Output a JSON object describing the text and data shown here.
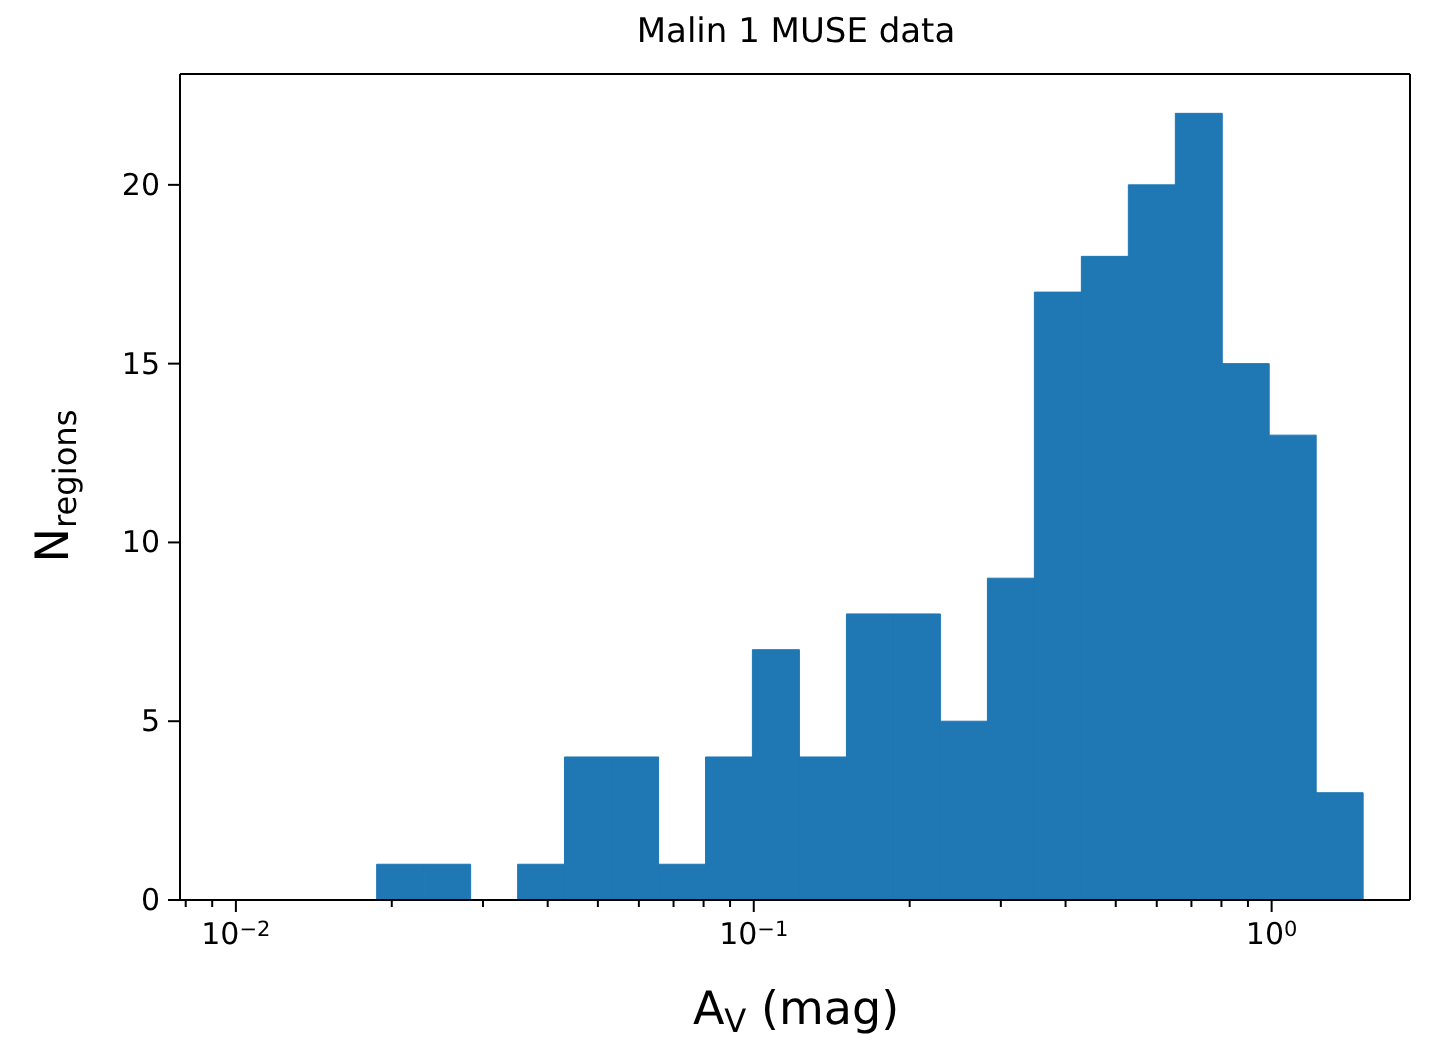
{
  "chart_data": {
    "type": "histogram",
    "title": "Malin 1 MUSE data",
    "xlabel": "A$_{V}$ (mag)",
    "ylabel": "N$_{regions}$",
    "bins": [
      0.0187,
      0.0231,
      0.0284,
      0.035,
      0.0431,
      0.0531,
      0.0655,
      0.0807,
      0.0994,
      0.1225,
      0.151,
      0.1861,
      0.2293,
      0.2826,
      0.3482,
      0.4291,
      0.5288,
      0.6517,
      0.8028,
      0.9892,
      1.219,
      1.502
    ],
    "values": [
      1,
      1,
      0,
      1,
      4,
      4,
      1,
      4,
      7,
      4,
      8,
      8,
      5,
      9,
      17,
      18,
      20,
      22,
      15,
      13,
      3
    ],
    "color": "#1f77b4",
    "log": "x",
    "xlim": [
      0.0078,
      1.85
    ],
    "ylim": [
      0,
      23.1
    ],
    "xticks": [
      {
        "value": 0.008,
        "label": null
      },
      {
        "value": 0.009,
        "label": null
      },
      {
        "value": 0.01,
        "label": "10$^{−2}$"
      },
      {
        "value": 0.02,
        "label": null
      },
      {
        "value": 0.03,
        "label": null
      },
      {
        "value": 0.04,
        "label": null
      },
      {
        "value": 0.05,
        "label": null
      },
      {
        "value": 0.06,
        "label": null
      },
      {
        "value": 0.07,
        "label": null
      },
      {
        "value": 0.08,
        "label": null
      },
      {
        "value": 0.09,
        "label": null
      },
      {
        "value": 0.1,
        "label": "10$^{−1}$"
      },
      {
        "value": 0.2,
        "label": null
      },
      {
        "value": 0.3,
        "label": null
      },
      {
        "value": 0.4,
        "label": null
      },
      {
        "value": 0.5,
        "label": null
      },
      {
        "value": 0.6,
        "label": null
      },
      {
        "value": 0.7,
        "label": null
      },
      {
        "value": 0.8,
        "label": null
      },
      {
        "value": 0.9,
        "label": null
      },
      {
        "value": 1,
        "label": "10$^{0}$"
      }
    ],
    "yticks": [
      0,
      5,
      10,
      15,
      20
    ],
    "grid": false
  }
}
